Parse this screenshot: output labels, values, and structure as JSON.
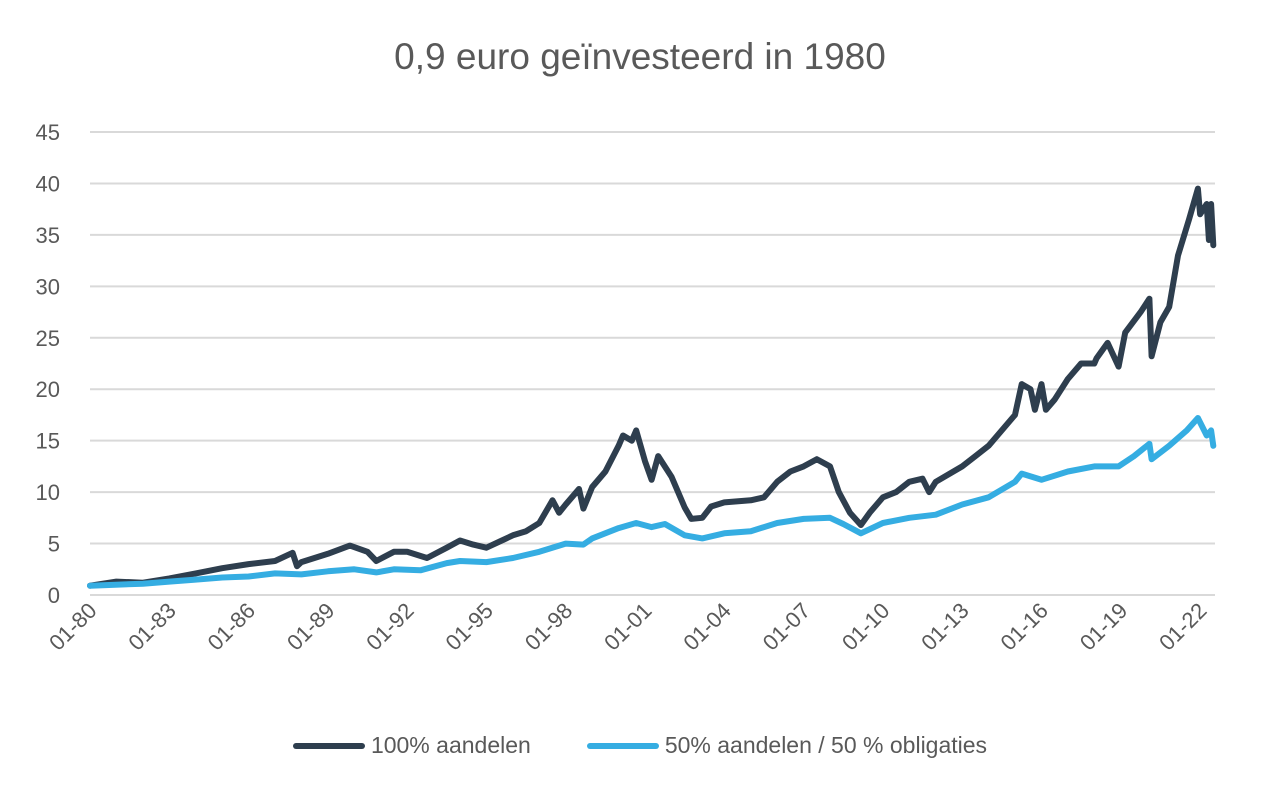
{
  "chart_data": {
    "type": "line",
    "title": "0,9 euro geïnvesteerd in 1980",
    "xlabel": "",
    "ylabel": "",
    "ylim": [
      0,
      45
    ],
    "yticks": [
      "0",
      "5",
      "10",
      "15",
      "20",
      "25",
      "30",
      "35",
      "40",
      "45"
    ],
    "xticks": [
      "01-80",
      "01-83",
      "01-86",
      "01-89",
      "01-92",
      "01-95",
      "01-98",
      "01-01",
      "01-04",
      "01-07",
      "01-10",
      "01-13",
      "01-16",
      "01-19",
      "01-22"
    ],
    "grid": true,
    "legend_position": "bottom",
    "series": [
      {
        "name": "100% aandelen",
        "color": "#2e3e4e",
        "points": [
          [
            "1980-01",
            0.9
          ],
          [
            "1981-01",
            1.3
          ],
          [
            "1982-01",
            1.2
          ],
          [
            "1983-01",
            1.6
          ],
          [
            "1984-01",
            2.1
          ],
          [
            "1985-01",
            2.6
          ],
          [
            "1986-01",
            3.0
          ],
          [
            "1987-01",
            3.3
          ],
          [
            "1987-09",
            4.1
          ],
          [
            "1987-11",
            2.8
          ],
          [
            "1988-01",
            3.2
          ],
          [
            "1989-01",
            4.0
          ],
          [
            "1989-11",
            4.8
          ],
          [
            "1990-07",
            4.2
          ],
          [
            "1990-11",
            3.3
          ],
          [
            "1991-07",
            4.2
          ],
          [
            "1992-01",
            4.2
          ],
          [
            "1992-10",
            3.6
          ],
          [
            "1993-07",
            4.6
          ],
          [
            "1994-01",
            5.3
          ],
          [
            "1994-07",
            4.9
          ],
          [
            "1995-01",
            4.6
          ],
          [
            "1995-07",
            5.2
          ],
          [
            "1996-01",
            5.8
          ],
          [
            "1996-07",
            6.2
          ],
          [
            "1997-01",
            7.0
          ],
          [
            "1997-07",
            9.2
          ],
          [
            "1997-10",
            8.0
          ],
          [
            "1998-01",
            8.8
          ],
          [
            "1998-07",
            10.3
          ],
          [
            "1998-09",
            8.4
          ],
          [
            "1999-01",
            10.5
          ],
          [
            "1999-07",
            12.0
          ],
          [
            "2000-01",
            14.5
          ],
          [
            "2000-03",
            15.5
          ],
          [
            "2000-07",
            15.0
          ],
          [
            "2000-09",
            16.0
          ],
          [
            "2001-01",
            13.0
          ],
          [
            "2001-04",
            11.2
          ],
          [
            "2001-07",
            13.5
          ],
          [
            "2002-01",
            11.5
          ],
          [
            "2002-07",
            8.5
          ],
          [
            "2002-10",
            7.4
          ],
          [
            "2003-03",
            7.5
          ],
          [
            "2003-07",
            8.6
          ],
          [
            "2004-01",
            9.0
          ],
          [
            "2005-01",
            9.2
          ],
          [
            "2005-07",
            9.5
          ],
          [
            "2006-01",
            11.0
          ],
          [
            "2006-07",
            12.0
          ],
          [
            "2007-01",
            12.5
          ],
          [
            "2007-07",
            13.2
          ],
          [
            "2008-01",
            12.5
          ],
          [
            "2008-05",
            10.0
          ],
          [
            "2008-10",
            8.0
          ],
          [
            "2009-03",
            6.8
          ],
          [
            "2009-07",
            8.0
          ],
          [
            "2010-01",
            9.5
          ],
          [
            "2010-07",
            10.0
          ],
          [
            "2011-01",
            11.0
          ],
          [
            "2011-07",
            11.3
          ],
          [
            "2011-10",
            10.0
          ],
          [
            "2012-01",
            11.0
          ],
          [
            "2013-01",
            12.5
          ],
          [
            "2013-07",
            13.5
          ],
          [
            "2014-01",
            14.5
          ],
          [
            "2015-01",
            17.5
          ],
          [
            "2015-04",
            20.5
          ],
          [
            "2015-08",
            20.0
          ],
          [
            "2015-10",
            18.0
          ],
          [
            "2016-01",
            20.5
          ],
          [
            "2016-03",
            18.0
          ],
          [
            "2016-07",
            19.0
          ],
          [
            "2017-01",
            21.0
          ],
          [
            "2017-07",
            22.5
          ],
          [
            "2018-01",
            22.5
          ],
          [
            "2018-02",
            23.0
          ],
          [
            "2018-07",
            24.5
          ],
          [
            "2018-12",
            22.2
          ],
          [
            "2019-03",
            25.5
          ],
          [
            "2019-10",
            27.5
          ],
          [
            "2020-02",
            28.8
          ],
          [
            "2020-03",
            23.2
          ],
          [
            "2020-07",
            26.5
          ],
          [
            "2020-11",
            28.0
          ],
          [
            "2021-03",
            33.0
          ],
          [
            "2021-08",
            36.5
          ],
          [
            "2021-12",
            39.5
          ],
          [
            "2022-01",
            37.0
          ],
          [
            "2022-04",
            38.0
          ],
          [
            "2022-05",
            34.5
          ],
          [
            "2022-06",
            38.0
          ],
          [
            "2022-07",
            34.0
          ]
        ]
      },
      {
        "name": "50% aandelen / 50 % obligaties",
        "color": "#35ade2",
        "points": [
          [
            "1980-01",
            0.9
          ],
          [
            "1982-01",
            1.1
          ],
          [
            "1983-01",
            1.3
          ],
          [
            "1984-01",
            1.5
          ],
          [
            "1985-01",
            1.7
          ],
          [
            "1986-01",
            1.8
          ],
          [
            "1987-01",
            2.1
          ],
          [
            "1988-01",
            2.0
          ],
          [
            "1989-01",
            2.3
          ],
          [
            "1990-01",
            2.5
          ],
          [
            "1990-11",
            2.2
          ],
          [
            "1991-07",
            2.5
          ],
          [
            "1992-07",
            2.4
          ],
          [
            "1993-07",
            3.1
          ],
          [
            "1994-01",
            3.3
          ],
          [
            "1995-01",
            3.2
          ],
          [
            "1996-01",
            3.6
          ],
          [
            "1997-01",
            4.2
          ],
          [
            "1998-01",
            5.0
          ],
          [
            "1998-09",
            4.9
          ],
          [
            "1999-01",
            5.5
          ],
          [
            "2000-01",
            6.5
          ],
          [
            "2000-09",
            7.0
          ],
          [
            "2001-04",
            6.6
          ],
          [
            "2001-10",
            6.9
          ],
          [
            "2002-07",
            5.8
          ],
          [
            "2003-03",
            5.5
          ],
          [
            "2004-01",
            6.0
          ],
          [
            "2005-01",
            6.2
          ],
          [
            "2006-01",
            7.0
          ],
          [
            "2007-01",
            7.4
          ],
          [
            "2008-01",
            7.5
          ],
          [
            "2008-07",
            6.9
          ],
          [
            "2009-03",
            6.0
          ],
          [
            "2010-01",
            7.0
          ],
          [
            "2011-01",
            7.5
          ],
          [
            "2012-01",
            7.8
          ],
          [
            "2013-01",
            8.8
          ],
          [
            "2014-01",
            9.5
          ],
          [
            "2015-01",
            11.0
          ],
          [
            "2015-04",
            11.8
          ],
          [
            "2016-01",
            11.2
          ],
          [
            "2017-01",
            12.0
          ],
          [
            "2018-01",
            12.5
          ],
          [
            "2018-12",
            12.5
          ],
          [
            "2019-07",
            13.5
          ],
          [
            "2020-02",
            14.7
          ],
          [
            "2020-03",
            13.2
          ],
          [
            "2020-11",
            14.5
          ],
          [
            "2021-07",
            16.0
          ],
          [
            "2021-12",
            17.2
          ],
          [
            "2022-04",
            15.5
          ],
          [
            "2022-06",
            16.0
          ],
          [
            "2022-07",
            14.5
          ]
        ]
      }
    ]
  }
}
